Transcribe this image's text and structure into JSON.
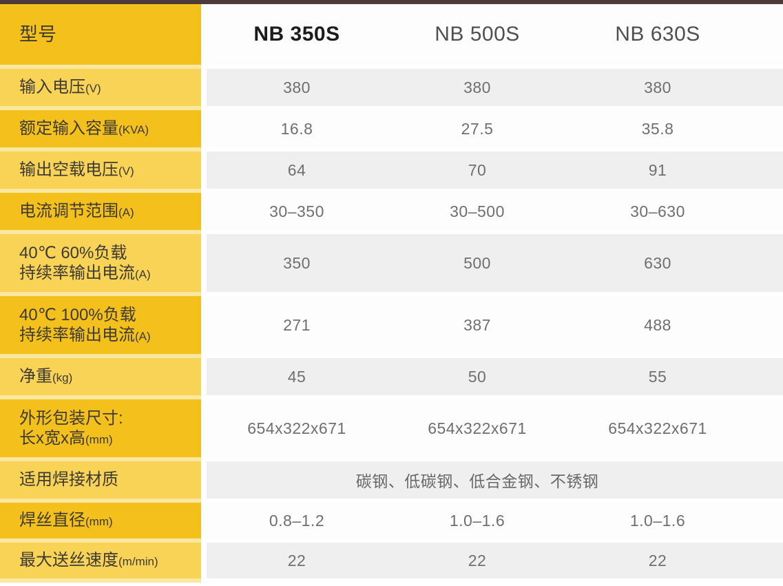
{
  "theme": {
    "top_bar": "#4d3a3a",
    "gold": "#f4c01b",
    "light_yellow": "#f8d355",
    "separator_yellow": "#fae7a0",
    "band_gray": "#efefef",
    "band_white": "#fdfdfd",
    "label_text": "#3e3a35",
    "value_text": "#6f6f6f"
  },
  "table": {
    "header": {
      "label": "型号",
      "models": [
        "NB 350S",
        "NB 500S",
        "NB 630S"
      ]
    },
    "rows": [
      {
        "label": [
          "输入电压"
        ],
        "unit": "(V)",
        "values": [
          "380",
          "380",
          "380"
        ]
      },
      {
        "label": [
          "额定输入容量"
        ],
        "unit": "(KVA)",
        "values": [
          "16.8",
          "27.5",
          "35.8"
        ]
      },
      {
        "label": [
          "输出空载电压"
        ],
        "unit": "(V)",
        "values": [
          "64",
          "70",
          "91"
        ]
      },
      {
        "label": [
          "电流调节范围"
        ],
        "unit": "(A)",
        "values": [
          "30–350",
          "30–500",
          "30–630"
        ]
      },
      {
        "label": [
          "40℃ 60%负载",
          "持续率输出电流"
        ],
        "unit": "(A)",
        "values": [
          "350",
          "500",
          "630"
        ]
      },
      {
        "label": [
          "40℃ 100%负载",
          "持续率输出电流"
        ],
        "unit": "(A)",
        "values": [
          "271",
          "387",
          "488"
        ]
      },
      {
        "label": [
          "净重"
        ],
        "unit": "(kg)",
        "values": [
          "45",
          "50",
          "55"
        ]
      },
      {
        "label": [
          "外形包装尺寸:",
          "长x宽x高"
        ],
        "unit": "(mm)",
        "values": [
          "654x322x671",
          "654x322x671",
          "654x322x671"
        ]
      },
      {
        "label": [
          "适用焊接材质"
        ],
        "unit": "",
        "merged": "碳钢、低碳钢、低合金钢、不锈钢"
      },
      {
        "label": [
          "焊丝直径"
        ],
        "unit": "(mm)",
        "values": [
          "0.8–1.2",
          "1.0–1.6",
          "1.0–1.6"
        ]
      },
      {
        "label": [
          "最大送丝速度"
        ],
        "unit": "(m/min)",
        "values": [
          "22",
          "22",
          "22"
        ]
      }
    ]
  }
}
